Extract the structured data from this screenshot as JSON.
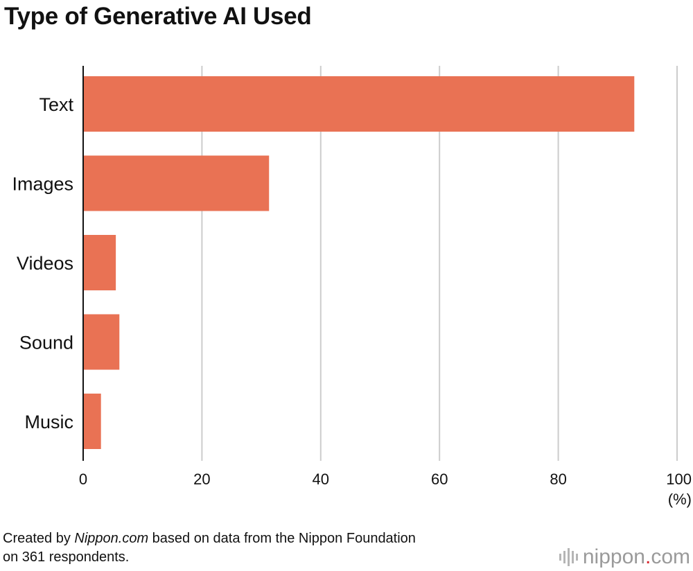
{
  "chart_data": {
    "type": "bar",
    "orientation": "horizontal",
    "title": "Type of Generative AI Used",
    "categories": [
      "Text",
      "Images",
      "Videos",
      "Sound",
      "Music"
    ],
    "values": [
      92.8,
      31.3,
      5.5,
      6.1,
      3.0
    ],
    "xlim": [
      0,
      100
    ],
    "xticks": [
      "0",
      "20",
      "40",
      "60",
      "80",
      "100"
    ],
    "unit_label": "(%)",
    "grid": true,
    "bar_color": "#e97254",
    "grid_color": "#cccccc"
  },
  "source": {
    "prefix": "Created by ",
    "site": "Nippon.com",
    "rest_line1": " based on data from the Nippon Foundation",
    "line2": "on 361 respondents."
  },
  "logo": {
    "word": "nippon",
    "dot": ".",
    "tld": "com"
  }
}
